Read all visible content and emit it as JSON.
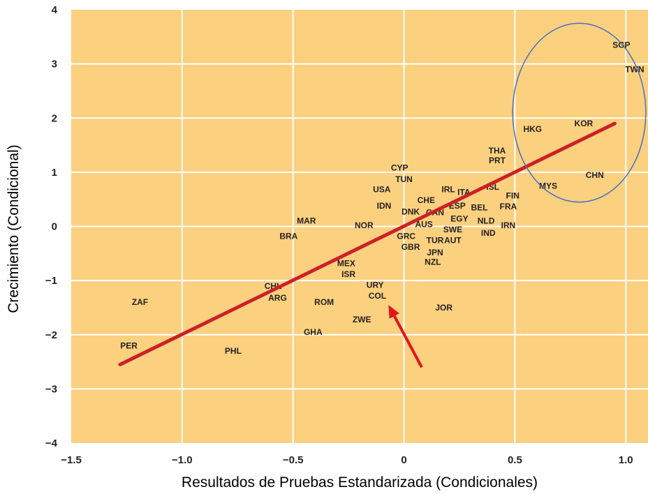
{
  "chart_data": {
    "type": "scatter",
    "title": "",
    "xlabel": "Resultados de Pruebas Estandarizada (Condicionales)",
    "ylabel": "Crecimiento  (Condicional)",
    "xlim": [
      -1.5,
      1.1
    ],
    "ylim": [
      -4,
      4
    ],
    "xticks": [
      -1.5,
      -1.0,
      -0.5,
      0,
      0.5,
      1.0
    ],
    "xtick_labels": [
      "−1.5",
      "−1.0",
      "−0.5",
      "0",
      "0.5",
      "1.0"
    ],
    "yticks": [
      -4,
      -3,
      -2,
      -1,
      0,
      1,
      2,
      3,
      4
    ],
    "ytick_labels": [
      "−4",
      "−3",
      "−2",
      "−1",
      "0",
      "1",
      "2",
      "3",
      "4"
    ],
    "grid": true,
    "points": [
      {
        "label": "SGP",
        "x": 0.98,
        "y": 3.35
      },
      {
        "label": "TWN",
        "x": 1.04,
        "y": 2.9
      },
      {
        "label": "KOR",
        "x": 0.81,
        "y": 1.9
      },
      {
        "label": "HKG",
        "x": 0.58,
        "y": 1.8
      },
      {
        "label": "CHN",
        "x": 0.86,
        "y": 0.95
      },
      {
        "label": "THA",
        "x": 0.42,
        "y": 1.4
      },
      {
        "label": "PRT",
        "x": 0.42,
        "y": 1.22
      },
      {
        "label": "MYS",
        "x": 0.65,
        "y": 0.75
      },
      {
        "label": "CYP",
        "x": -0.02,
        "y": 1.08
      },
      {
        "label": "TUN",
        "x": 0.0,
        "y": 0.87
      },
      {
        "label": "USA",
        "x": -0.1,
        "y": 0.68
      },
      {
        "label": "IRL",
        "x": 0.2,
        "y": 0.68
      },
      {
        "label": "ITA",
        "x": 0.27,
        "y": 0.63
      },
      {
        "label": "ISL",
        "x": 0.4,
        "y": 0.73
      },
      {
        "label": "FIN",
        "x": 0.49,
        "y": 0.57
      },
      {
        "label": "CHE",
        "x": 0.1,
        "y": 0.48
      },
      {
        "label": "IDN",
        "x": -0.09,
        "y": 0.38
      },
      {
        "label": "ESP",
        "x": 0.24,
        "y": 0.38
      },
      {
        "label": "BEL",
        "x": 0.34,
        "y": 0.35
      },
      {
        "label": "FRA",
        "x": 0.47,
        "y": 0.37
      },
      {
        "label": "DNK",
        "x": 0.03,
        "y": 0.27
      },
      {
        "label": "CAN",
        "x": 0.14,
        "y": 0.26
      },
      {
        "label": "MAR",
        "x": -0.44,
        "y": 0.1
      },
      {
        "label": "EGY",
        "x": 0.25,
        "y": 0.14
      },
      {
        "label": "NLD",
        "x": 0.37,
        "y": 0.1
      },
      {
        "label": "NOR",
        "x": -0.18,
        "y": 0.02
      },
      {
        "label": "AUS",
        "x": 0.09,
        "y": 0.04
      },
      {
        "label": "IRN",
        "x": 0.47,
        "y": 0.02
      },
      {
        "label": "SWE",
        "x": 0.22,
        "y": -0.06
      },
      {
        "label": "IND",
        "x": 0.38,
        "y": -0.12
      },
      {
        "label": "BRA",
        "x": -0.52,
        "y": -0.18
      },
      {
        "label": "GRC",
        "x": 0.01,
        "y": -0.18
      },
      {
        "label": "TUR",
        "x": 0.14,
        "y": -0.26
      },
      {
        "label": "AUT",
        "x": 0.22,
        "y": -0.26
      },
      {
        "label": "GBR",
        "x": 0.03,
        "y": -0.38
      },
      {
        "label": "JPN",
        "x": 0.14,
        "y": -0.48
      },
      {
        "label": "NZL",
        "x": 0.13,
        "y": -0.66
      },
      {
        "label": "MEX",
        "x": -0.26,
        "y": -0.68
      },
      {
        "label": "ISR",
        "x": -0.25,
        "y": -0.88
      },
      {
        "label": "URY",
        "x": -0.13,
        "y": -1.08
      },
      {
        "label": "CHL",
        "x": -0.59,
        "y": -1.1
      },
      {
        "label": "COL",
        "x": -0.12,
        "y": -1.28
      },
      {
        "label": "ARG",
        "x": -0.57,
        "y": -1.32
      },
      {
        "label": "ROM",
        "x": -0.36,
        "y": -1.4
      },
      {
        "label": "ZAF",
        "x": -1.19,
        "y": -1.4
      },
      {
        "label": "JOR",
        "x": 0.18,
        "y": -1.5
      },
      {
        "label": "ZWE",
        "x": -0.19,
        "y": -1.72
      },
      {
        "label": "GHA",
        "x": -0.41,
        "y": -1.95
      },
      {
        "label": "PER",
        "x": -1.24,
        "y": -2.2
      },
      {
        "label": "PHL",
        "x": -0.77,
        "y": -2.3
      }
    ],
    "regression_line": {
      "x": [
        -1.28,
        0.95
      ],
      "y": [
        -2.55,
        1.9
      ],
      "color": "#cc2027"
    },
    "highlight_circle": {
      "center_x": 0.79,
      "center_y": 2.1,
      "radius_x": 0.3,
      "radius_y": 1.65,
      "color": "#4472c4"
    },
    "highlight_arrow": {
      "from_x": 0.08,
      "from_y": -2.6,
      "to_x": -0.07,
      "to_y": -1.45,
      "color": "#e3141b"
    }
  },
  "colors": {
    "plot_background": "#fbd07f",
    "grid": "#ffffff",
    "text": "#231f20"
  }
}
